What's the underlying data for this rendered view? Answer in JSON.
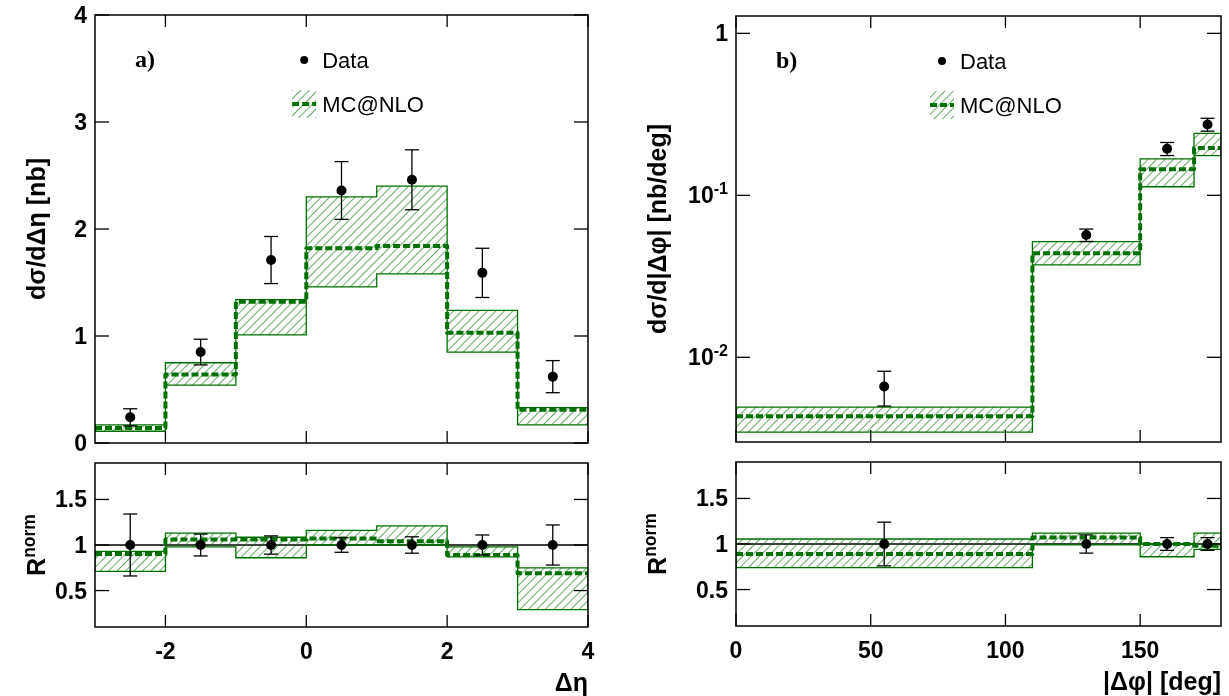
{
  "chart_data": [
    {
      "type": "step",
      "ylabel": "dσ/dΔη [nb]",
      "annotations": [
        "a)"
      ],
      "xlim": [
        -3,
        4
      ],
      "xticks": [
        -2,
        0,
        2,
        4
      ],
      "ylim": [
        0,
        4
      ],
      "yticks": [
        0,
        1,
        2,
        3,
        4
      ],
      "tick_labels": "y",
      "legend": "top",
      "series": [
        {
          "name": "MC@NLO",
          "color": "#007000",
          "line_style": "dashed",
          "x": [
            -3,
            -2,
            -1,
            0,
            1,
            2,
            3,
            4
          ],
          "values": [
            0.14,
            0.64,
            1.32,
            1.82,
            1.84,
            1.03,
            0.31,
            0.31
          ],
          "lower": [
            0.11,
            0.54,
            1.01,
            1.46,
            1.58,
            0.85,
            0.17,
            0.17
          ],
          "upper": [
            0.17,
            0.75,
            1.34,
            2.3,
            2.4,
            1.24,
            0.33,
            0.33
          ]
        },
        {
          "name": "Data",
          "type": "scatter",
          "color": "#000000",
          "marker": "circle",
          "x": [
            -2.5,
            -1.5,
            -0.5,
            0.5,
            1.5,
            2.5,
            3.5
          ],
          "values": [
            0.24,
            0.85,
            1.71,
            2.36,
            2.46,
            1.59,
            0.62
          ],
          "errors": [
            0.08,
            0.12,
            0.22,
            0.27,
            0.28,
            0.23,
            0.15
          ]
        }
      ]
    },
    {
      "type": "step",
      "ylabel": "R$^{norm}$",
      "xlabel": "Δη",
      "xlim": [
        -3,
        4
      ],
      "xticks": [
        -2,
        0,
        2,
        4
      ],
      "ylim": [
        0.1,
        1.9
      ],
      "yticks": [
        0.5,
        1,
        1.5
      ],
      "ref_lines": [
        {
          "axis": "y",
          "value": 1,
          "color": "#000000"
        }
      ],
      "series": [
        {
          "color": "#007000",
          "line_style": "dashed",
          "x": [
            -3,
            -2,
            -1,
            0,
            1,
            2,
            3,
            4
          ],
          "values": [
            0.9,
            1.06,
            1.06,
            1.07,
            1.04,
            0.89,
            0.69,
            0.69
          ],
          "lower": [
            0.71,
            0.98,
            0.86,
            1.0,
            1.0,
            0.87,
            0.29,
            0.29
          ],
          "upper": [
            0.93,
            1.13,
            1.085,
            1.16,
            1.21,
            0.98,
            0.75,
            0.75
          ]
        },
        {
          "type": "scatter",
          "color": "#000000",
          "marker": "circle",
          "x": [
            -2.5,
            -1.5,
            -0.5,
            0.5,
            1.5,
            2.5,
            3.5
          ],
          "values": [
            1,
            1,
            1,
            1,
            1,
            1,
            1
          ],
          "errors": [
            0.34,
            0.12,
            0.1,
            0.08,
            0.09,
            0.11,
            0.22
          ]
        }
      ]
    },
    {
      "type": "step",
      "ylabel": "dσ/d|Δφ| [nb/deg]",
      "annotations": [
        "b)"
      ],
      "log": "y",
      "xlim": [
        0,
        180
      ],
      "xticks": [
        0,
        50,
        100,
        150
      ],
      "ylim": [
        0.003,
        1.28
      ],
      "yticks": [
        {
          "value": 0.01,
          "label": "10$^{-2}$"
        },
        {
          "value": 0.1,
          "label": "10$^{-1}$"
        },
        1
      ],
      "tick_labels": "y",
      "legend": "top",
      "series": [
        {
          "name": "MC@NLO",
          "color": "#007000",
          "line_style": "dashed",
          "x": [
            0,
            110,
            150,
            170,
            180
          ],
          "values": [
            0.00433,
            0.0439,
            0.145,
            0.196,
            0.196
          ],
          "lower": [
            0.00345,
            0.0372,
            0.113,
            0.176,
            0.176
          ],
          "upper": [
            0.00493,
            0.0518,
            0.168,
            0.241,
            0.241
          ]
        },
        {
          "name": "Data",
          "type": "scatter",
          "color": "#000000",
          "marker": "circle",
          "x": [
            55,
            130,
            160,
            175
          ],
          "values": [
            0.0066,
            0.0569,
            0.194,
            0.274
          ],
          "errors": [
            [
              0.005,
              0.0082
            ],
            0.005,
            0.018,
            0.025
          ]
        }
      ]
    },
    {
      "type": "step",
      "ylabel": "R$^{norm}$",
      "xlabel": "|Δφ| [deg]",
      "xlim": [
        0,
        180
      ],
      "xticks": [
        0,
        50,
        100,
        150
      ],
      "ylim": [
        0.1,
        1.9
      ],
      "yticks": [
        0.5,
        1,
        1.5
      ],
      "ref_lines": [
        {
          "axis": "y",
          "value": 1,
          "color": "#000000"
        }
      ],
      "series": [
        {
          "color": "#007000",
          "line_style": "dashed",
          "x": [
            0,
            110,
            150,
            170,
            180
          ],
          "values": [
            0.89,
            1.07,
            1.0,
            0.98,
            0.98
          ],
          "lower": [
            0.74,
            0.99,
            0.86,
            0.94,
            0.94
          ],
          "upper": [
            1.055,
            1.12,
            1.0,
            1.12,
            1.12
          ]
        },
        {
          "type": "scatter",
          "color": "#000000",
          "marker": "circle",
          "x": [
            55,
            130,
            160,
            175
          ],
          "values": [
            1,
            1,
            1,
            1
          ],
          "errors": [
            0.24,
            0.1,
            0.07,
            0.07
          ]
        }
      ]
    }
  ]
}
